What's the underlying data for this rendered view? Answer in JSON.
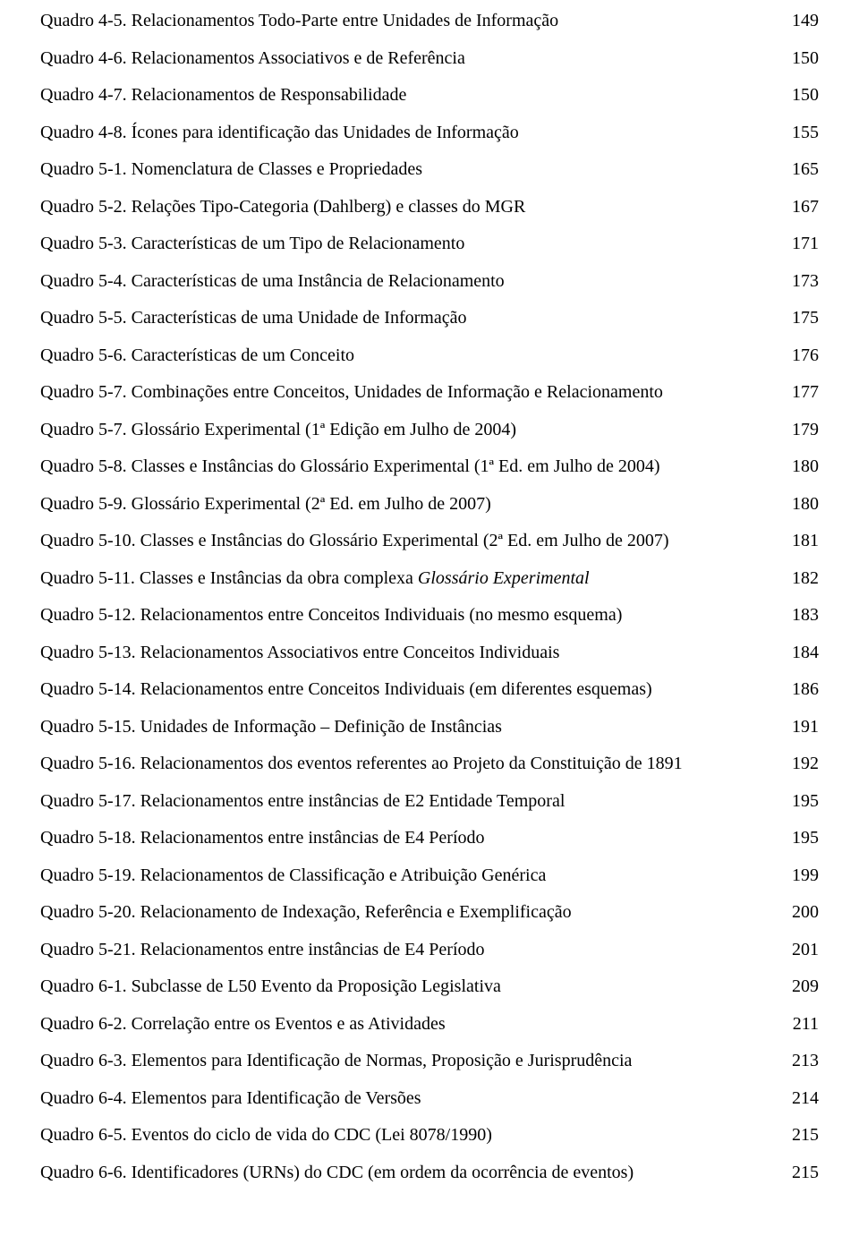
{
  "font_family": "Times New Roman",
  "font_size_pt": 15,
  "text_color": "#000000",
  "background_color": "#ffffff",
  "entries": [
    {
      "label": "Quadro 4-5. Relacionamentos Todo-Parte entre Unidades de Informação",
      "page": "149"
    },
    {
      "label": "Quadro 4-6. Relacionamentos Associativos e de Referência",
      "page": "150"
    },
    {
      "label": "Quadro 4-7. Relacionamentos de Responsabilidade",
      "page": "150"
    },
    {
      "label": "Quadro 4-8. Ícones para identificação das Unidades de Informação",
      "page": "155"
    },
    {
      "label": "Quadro 5-1. Nomenclatura de Classes e Propriedades",
      "page": "165"
    },
    {
      "label": "Quadro 5-2. Relações Tipo-Categoria (Dahlberg) e classes do MGR",
      "page": "167"
    },
    {
      "label": "Quadro 5-3. Características de um Tipo de Relacionamento",
      "page": "171"
    },
    {
      "label": "Quadro 5-4. Características de uma Instância de Relacionamento",
      "page": "173"
    },
    {
      "label": "Quadro 5-5. Características de uma Unidade de Informação",
      "page": "175"
    },
    {
      "label": "Quadro 5-6. Características de um Conceito",
      "page": "176"
    },
    {
      "label": "Quadro 5-7. Combinações entre Conceitos, Unidades de Informação e Relacionamento",
      "page": "177"
    },
    {
      "label": "Quadro 5-7. Glossário Experimental  (1ª Edição em Julho de 2004)",
      "page": "179"
    },
    {
      "label": "Quadro 5-8.  Classes e Instâncias do Glossário Experimental  (1ª Ed. em Julho de 2004)",
      "page": "180"
    },
    {
      "label": "Quadro 5-9. Glossário Experimental  (2ª Ed. em Julho de 2007)",
      "page": "180"
    },
    {
      "label": "Quadro 5-10.  Classes e Instâncias do Glossário Experimental  (2ª Ed. em Julho de 2007)",
      "page": "181"
    },
    {
      "label_pre": "Quadro 5-11.  Classes e Instâncias da obra complexa ",
      "label_italic": "Glossário Experimental",
      "page": "182"
    },
    {
      "label": "Quadro 5-12. Relacionamentos entre Conceitos Individuais (no mesmo esquema)",
      "page": "183"
    },
    {
      "label": "Quadro 5-13. Relacionamentos Associativos entre Conceitos Individuais",
      "page": "184"
    },
    {
      "label": "Quadro 5-14. Relacionamentos entre Conceitos Individuais (em diferentes esquemas)",
      "page": "186"
    },
    {
      "label": "Quadro 5-15. Unidades de Informação – Definição de Instâncias",
      "page": "191"
    },
    {
      "label": "Quadro 5-16. Relacionamentos dos eventos referentes ao Projeto da Constituição de 1891",
      "page": "192"
    },
    {
      "label": "Quadro 5-17. Relacionamentos entre instâncias de E2 Entidade Temporal",
      "page": "195"
    },
    {
      "label": "Quadro 5-18. Relacionamentos entre instâncias de E4 Período",
      "page": "195"
    },
    {
      "label": "Quadro 5-19. Relacionamentos de Classificação e Atribuição Genérica",
      "page": "199"
    },
    {
      "label": "Quadro 5-20. Relacionamento de Indexação, Referência e Exemplificação",
      "page": "200"
    },
    {
      "label": "Quadro 5-21. Relacionamentos entre instâncias de E4 Período",
      "page": "201"
    },
    {
      "label": "Quadro 6-1. Subclasse de L50 Evento da Proposição Legislativa",
      "page": "209"
    },
    {
      "label": "Quadro 6-2. Correlação entre os Eventos e as Atividades",
      "page": "211"
    },
    {
      "label": "Quadro 6-3. Elementos para Identificação de Normas, Proposição e Jurisprudência",
      "page": "213"
    },
    {
      "label": "Quadro 6-4. Elementos para Identificação de Versões",
      "page": "214"
    },
    {
      "label": "Quadro 6-5. Eventos do ciclo de vida do CDC (Lei 8078/1990)",
      "page": "215"
    },
    {
      "label": "Quadro 6-6. Identificadores (URNs) do CDC (em ordem da ocorrência de eventos)",
      "page": "215"
    }
  ]
}
